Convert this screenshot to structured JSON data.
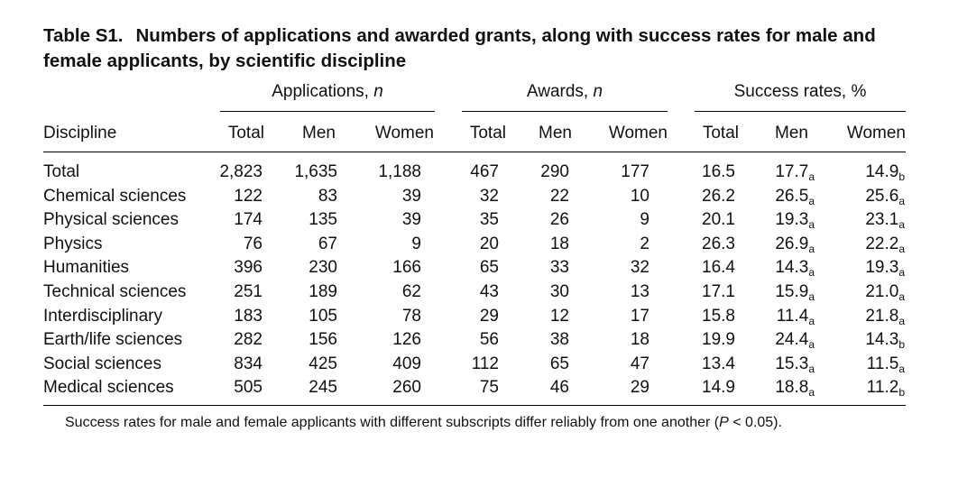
{
  "caption": {
    "label": "Table S1.",
    "text": "Numbers of applications and awarded grants, along with success rates for male and female applicants, by scientific discipline"
  },
  "groups": [
    {
      "name": "Applications, ",
      "unit": "n"
    },
    {
      "name": "Awards, ",
      "unit": "n"
    },
    {
      "name": "Success rates, %",
      "unit": ""
    }
  ],
  "columns": [
    "Discipline",
    "Total",
    "Men",
    "Women",
    "Total",
    "Men",
    "Women",
    "Total",
    "Men",
    "Women"
  ],
  "rows": [
    {
      "discipline": "Total",
      "app_total": "2,823",
      "app_men": "1,635",
      "app_women": "1,188",
      "aw_total": "467",
      "aw_men": "290",
      "aw_women": "177",
      "sr_total": "16.5",
      "sr_men": "17.7",
      "sr_men_sub": "a",
      "sr_women": "14.9",
      "sr_women_sub": "b"
    },
    {
      "discipline": "Chemical sciences",
      "app_total": "122",
      "app_men": "83",
      "app_women": "39",
      "aw_total": "32",
      "aw_men": "22",
      "aw_women": "10",
      "sr_total": "26.2",
      "sr_men": "26.5",
      "sr_men_sub": "a",
      "sr_women": "25.6",
      "sr_women_sub": "a"
    },
    {
      "discipline": "Physical sciences",
      "app_total": "174",
      "app_men": "135",
      "app_women": "39",
      "aw_total": "35",
      "aw_men": "26",
      "aw_women": "9",
      "sr_total": "20.1",
      "sr_men": "19.3",
      "sr_men_sub": "a",
      "sr_women": "23.1",
      "sr_women_sub": "a"
    },
    {
      "discipline": "Physics",
      "app_total": "76",
      "app_men": "67",
      "app_women": "9",
      "aw_total": "20",
      "aw_men": "18",
      "aw_women": "2",
      "sr_total": "26.3",
      "sr_men": "26.9",
      "sr_men_sub": "a",
      "sr_women": "22.2",
      "sr_women_sub": "a"
    },
    {
      "discipline": "Humanities",
      "app_total": "396",
      "app_men": "230",
      "app_women": "166",
      "aw_total": "65",
      "aw_men": "33",
      "aw_women": "32",
      "sr_total": "16.4",
      "sr_men": "14.3",
      "sr_men_sub": "a",
      "sr_women": "19.3",
      "sr_women_sub": "a"
    },
    {
      "discipline": "Technical sciences",
      "app_total": "251",
      "app_men": "189",
      "app_women": "62",
      "aw_total": "43",
      "aw_men": "30",
      "aw_women": "13",
      "sr_total": "17.1",
      "sr_men": "15.9",
      "sr_men_sub": "a",
      "sr_women": "21.0",
      "sr_women_sub": "a"
    },
    {
      "discipline": "Interdisciplinary",
      "app_total": "183",
      "app_men": "105",
      "app_women": "78",
      "aw_total": "29",
      "aw_men": "12",
      "aw_women": "17",
      "sr_total": "15.8",
      "sr_men": "11.4",
      "sr_men_sub": "a",
      "sr_women": "21.8",
      "sr_women_sub": "a"
    },
    {
      "discipline": "Earth/life sciences",
      "app_total": "282",
      "app_men": "156",
      "app_women": "126",
      "aw_total": "56",
      "aw_men": "38",
      "aw_women": "18",
      "sr_total": "19.9",
      "sr_men": "24.4",
      "sr_men_sub": "a",
      "sr_women": "14.3",
      "sr_women_sub": "b"
    },
    {
      "discipline": "Social sciences",
      "app_total": "834",
      "app_men": "425",
      "app_women": "409",
      "aw_total": "112",
      "aw_men": "65",
      "aw_women": "47",
      "sr_total": "13.4",
      "sr_men": "15.3",
      "sr_men_sub": "a",
      "sr_women": "11.5",
      "sr_women_sub": "a"
    },
    {
      "discipline": "Medical sciences",
      "app_total": "505",
      "app_men": "245",
      "app_women": "260",
      "aw_total": "75",
      "aw_men": "46",
      "aw_women": "29",
      "sr_total": "14.9",
      "sr_men": "18.8",
      "sr_men_sub": "a",
      "sr_women": "11.2",
      "sr_women_sub": "b"
    }
  ],
  "footnote": {
    "before": "Success rates for male and female applicants with different subscripts differ reliably from one another (",
    "p": "P",
    "after": " < 0.05)."
  }
}
